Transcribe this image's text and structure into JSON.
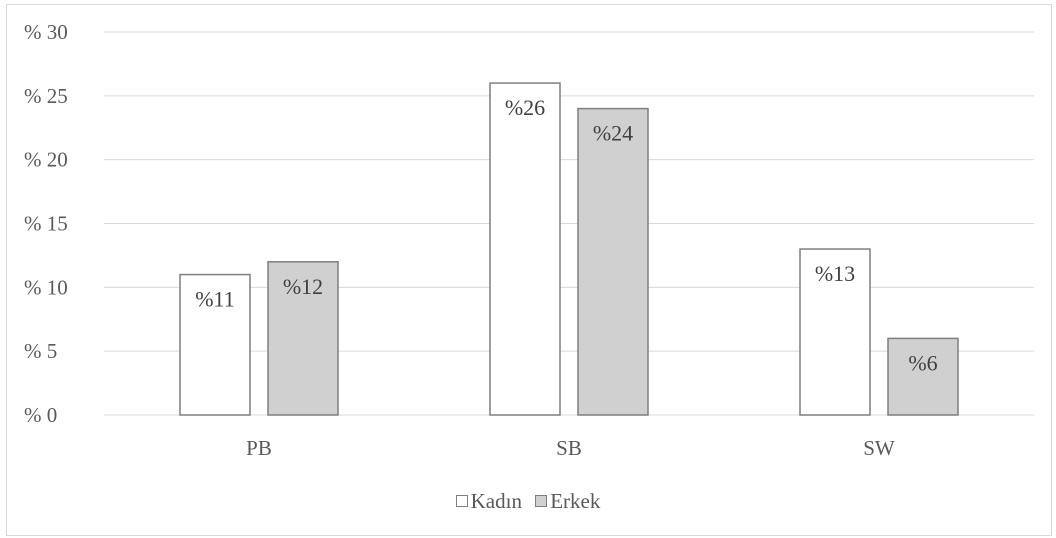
{
  "chart_data": {
    "type": "bar",
    "categories": [
      "PB",
      "SB",
      "SW"
    ],
    "series": [
      {
        "name": "Kadın",
        "values": [
          11,
          26,
          13
        ],
        "labels": [
          "%11",
          "%26",
          "%13"
        ],
        "color": "#ffffff"
      },
      {
        "name": "Erkek",
        "values": [
          12,
          24,
          6
        ],
        "labels": [
          "%12",
          "%24",
          "%6"
        ],
        "color": "#d0d0d0"
      }
    ],
    "ylim": [
      0,
      30
    ],
    "yticks": [
      0,
      5,
      10,
      15,
      20,
      25,
      30
    ],
    "ytick_labels": [
      "% 0",
      "% 5",
      "% 10",
      "% 15",
      "% 20",
      "% 25",
      "% 30"
    ],
    "grid": true,
    "legend_position": "bottom",
    "bar_edge_color": "#7f7f7f",
    "grid_color": "#d9d9d9"
  }
}
